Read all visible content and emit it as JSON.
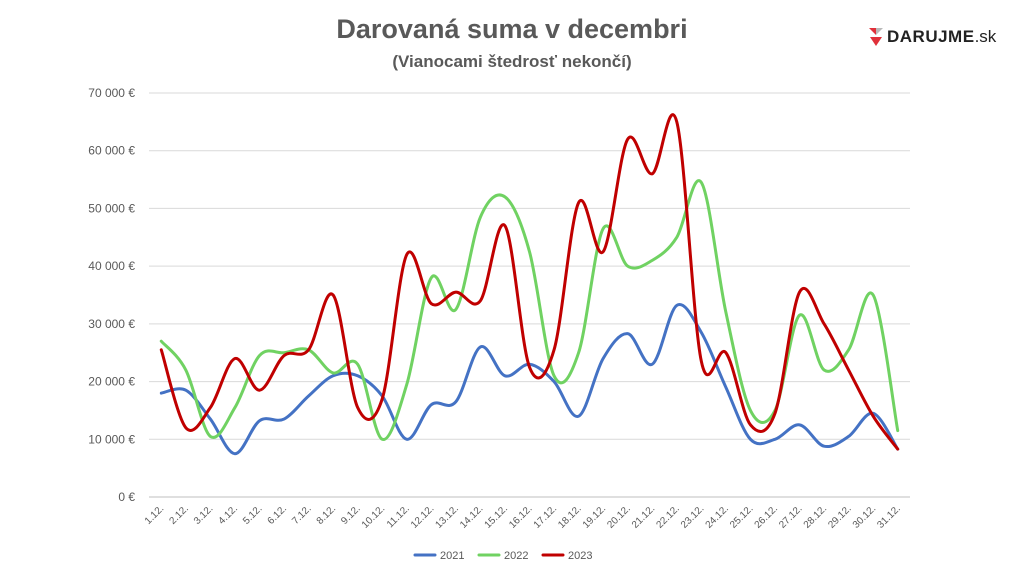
{
  "brand": {
    "name": "DARUJME",
    "suffix": ".sk",
    "accent_color": "#e0303a"
  },
  "chart_data": {
    "type": "line",
    "title": "Darovaná suma v decembri",
    "subtitle": "(Vianocami štedrosť nekončí)",
    "xlabel": "",
    "ylabel": "",
    "ylim": [
      0,
      70000
    ],
    "y_ticks": [
      {
        "value": 0,
        "label": "0 €"
      },
      {
        "value": 10000,
        "label": "10 000 €"
      },
      {
        "value": 20000,
        "label": "20 000 €"
      },
      {
        "value": 30000,
        "label": "30 000 €"
      },
      {
        "value": 40000,
        "label": "40 000 €"
      },
      {
        "value": 50000,
        "label": "50 000 €"
      },
      {
        "value": 60000,
        "label": "60 000 €"
      },
      {
        "value": 70000,
        "label": "70 000 €"
      }
    ],
    "grid": true,
    "smooth": true,
    "legend_position": "bottom",
    "categories": [
      "1.12.",
      "2.12.",
      "3.12.",
      "4.12.",
      "5.12.",
      "6.12.",
      "7.12.",
      "8.12.",
      "9.12.",
      "10.12.",
      "11.12.",
      "12.12.",
      "13.12.",
      "14.12.",
      "15.12.",
      "16.12.",
      "17.12.",
      "18.12.",
      "19.12.",
      "20.12.",
      "21.12.",
      "22.12.",
      "23.12.",
      "24.12.",
      "25.12.",
      "26.12.",
      "27.12.",
      "28.12.",
      "29.12.",
      "30.12.",
      "31.12."
    ],
    "series": [
      {
        "name": "2021",
        "color": "#4472c4",
        "values": [
          18000,
          18500,
          13500,
          7500,
          13200,
          13500,
          17500,
          21000,
          21000,
          17500,
          10000,
          16000,
          16500,
          26000,
          21000,
          23000,
          20000,
          14000,
          24000,
          28300,
          23000,
          33200,
          28500,
          19000,
          10000,
          10000,
          12500,
          8800,
          10500,
          14500,
          8300
        ]
      },
      {
        "name": "2022",
        "color": "#70d262",
        "values": [
          27000,
          22000,
          10500,
          15500,
          24500,
          25000,
          25500,
          21500,
          23000,
          10000,
          19500,
          38000,
          32500,
          48500,
          52000,
          42500,
          21000,
          25000,
          46500,
          40000,
          41000,
          45000,
          54500,
          32000,
          15000,
          15000,
          31500,
          22000,
          25500,
          35000,
          11500
        ]
      },
      {
        "name": "2023",
        "color": "#c00000",
        "values": [
          25500,
          12000,
          15500,
          24000,
          18500,
          24500,
          25500,
          35000,
          15500,
          17000,
          42000,
          33500,
          35500,
          34000,
          47000,
          22500,
          25500,
          51000,
          42500,
          62000,
          56000,
          65000,
          23500,
          25000,
          12500,
          14500,
          35500,
          30000,
          22000,
          14000,
          8300
        ]
      }
    ]
  }
}
